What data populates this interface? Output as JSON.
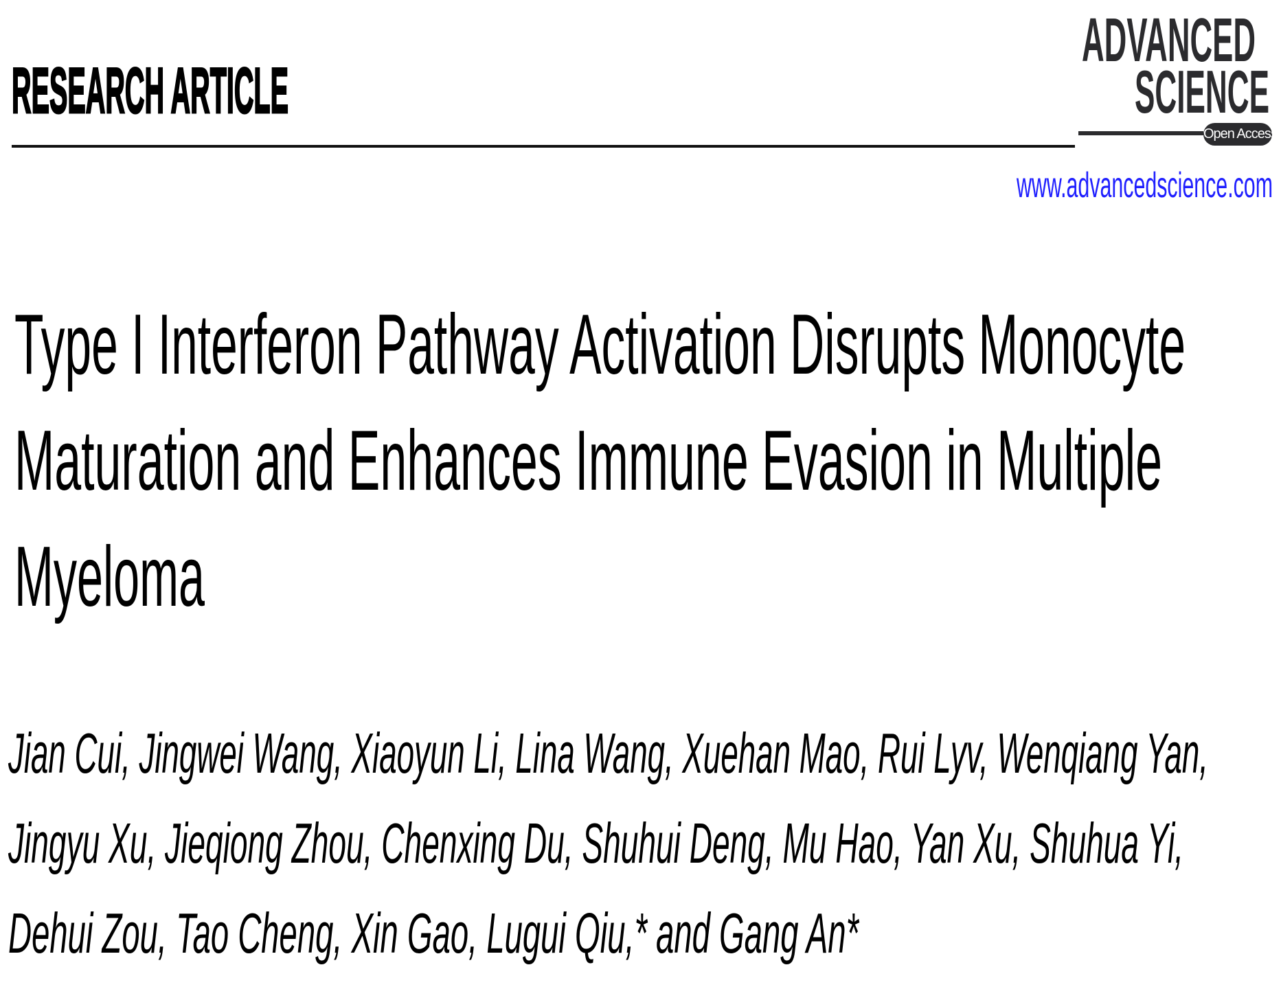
{
  "header": {
    "section_label": "RESEARCH ARTICLE",
    "journal_logo": {
      "line1": "ADVANCED",
      "line2": "SCIENCE",
      "badge": "Open Access"
    },
    "journal_url": "www.advancedscience.com",
    "colors": {
      "url": "#1f1fff",
      "logo": "#2b2b2e"
    }
  },
  "article": {
    "title_lines": [
      "Type I Interferon Pathway Activation Disrupts Monocyte",
      "Maturation and Enhances Immune Evasion in Multiple",
      "Myeloma"
    ],
    "author_lines": [
      "Jian Cui, Jingwei Wang, Xiaoyun Li, Lina Wang, Xuehan Mao, Rui Lyv, Wenqiang Yan,",
      "Jingyu Xu, Jieqiong Zhou, Chenxing Du, Shuhui Deng, Mu Hao, Yan Xu, Shuhua Yi,",
      "Dehui Zou, Tao Cheng, Xin Gao, Lugui Qiu,* and Gang An*"
    ]
  }
}
